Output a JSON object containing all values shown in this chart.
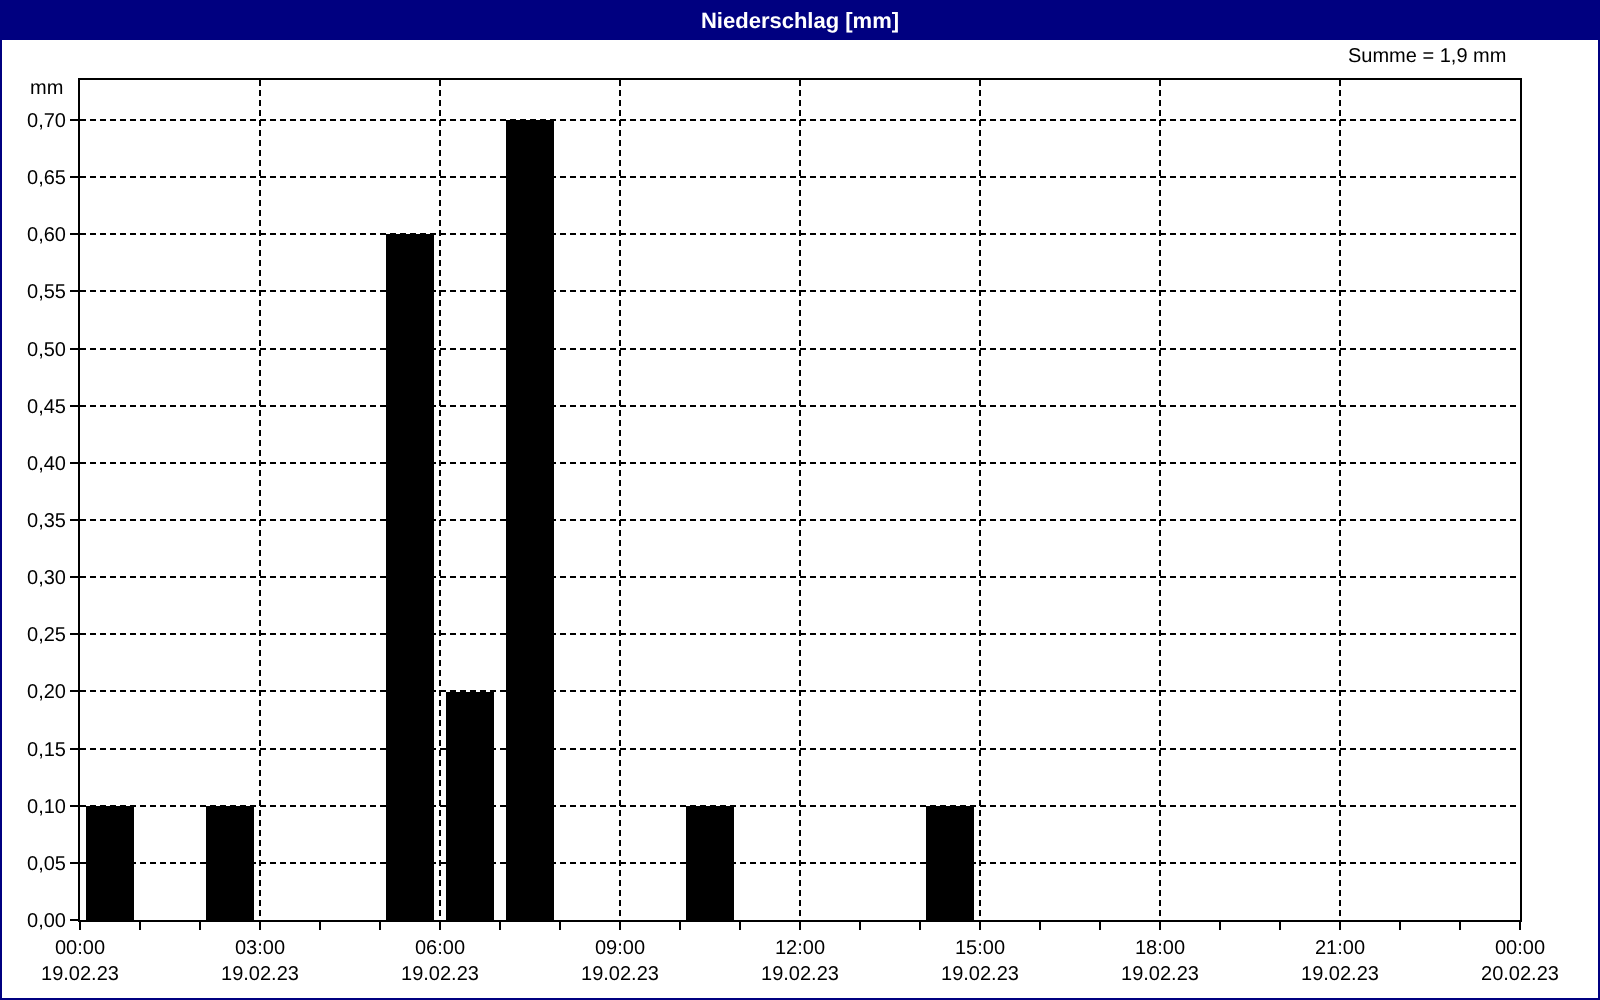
{
  "chart_data": {
    "type": "bar",
    "title": "Niederschlag [mm]",
    "ylabel": "mm",
    "annotations": [
      "Summe = 1,9 mm"
    ],
    "x": [
      "--02-19T00:30",
      "--02-19T02:30",
      "--02-19T05:30",
      "--02-19T06:30",
      "--02-19T07:30",
      "--02-19T10:30",
      "--02-19T14:30"
    ],
    "values": [
      0.1,
      0.1,
      0.6,
      0.2,
      0.7,
      0.1,
      0.1
    ],
    "color": "#000000",
    "xlim": [
      "--02-19T00:00",
      "--02-20T00:00"
    ],
    "xticks": [
      {
        "value": "--02-19T00:00",
        "label": "00:00\n19.02.23"
      },
      {
        "value": "--02-19T01:00",
        "label": null
      },
      {
        "value": "--02-19T02:00",
        "label": null
      },
      {
        "value": "--02-19T03:00",
        "label": "03:00\n19.02.23"
      },
      {
        "value": "--02-19T04:00",
        "label": null
      },
      {
        "value": "--02-19T05:00",
        "label": null
      },
      {
        "value": "--02-19T06:00",
        "label": "06:00\n19.02.23"
      },
      {
        "value": "--02-19T07:00",
        "label": null
      },
      {
        "value": "--02-19T08:00",
        "label": null
      },
      {
        "value": "--02-19T09:00",
        "label": "09:00\n19.02.23"
      },
      {
        "value": "--02-19T10:00",
        "label": null
      },
      {
        "value": "--02-19T11:00",
        "label": null
      },
      {
        "value": "--02-19T12:00",
        "label": "12:00\n19.02.23"
      },
      {
        "value": "--02-19T13:00",
        "label": null
      },
      {
        "value": "--02-19T14:00",
        "label": null
      },
      {
        "value": "--02-19T15:00",
        "label": "15:00\n19.02.23"
      },
      {
        "value": "--02-19T16:00",
        "label": null
      },
      {
        "value": "--02-19T17:00",
        "label": null
      },
      {
        "value": "--02-19T18:00",
        "label": "18:00\n19.02.23"
      },
      {
        "value": "--02-19T19:00",
        "label": null
      },
      {
        "value": "--02-19T20:00",
        "label": null
      },
      {
        "value": "--02-19T21:00",
        "label": "21:00\n19.02.23"
      },
      {
        "value": "--02-19T22:00",
        "label": null
      },
      {
        "value": "--02-19T23:00",
        "label": null
      },
      {
        "value": "--02-20T00:00",
        "label": "00:00\n20.02.23"
      }
    ],
    "ylim": [
      0,
      0.735
    ],
    "yticks": [
      {
        "value": 0,
        "label": "0,00"
      },
      {
        "value": 0.05,
        "label": "0,05"
      },
      {
        "value": 0.1,
        "label": "0,10"
      },
      {
        "value": 0.15,
        "label": "0,15"
      },
      {
        "value": 0.2,
        "label": "0,20"
      },
      {
        "value": 0.25,
        "label": "0,25"
      },
      {
        "value": 0.3,
        "label": "0,30"
      },
      {
        "value": 0.35,
        "label": "0,35"
      },
      {
        "value": 0.4,
        "label": "0,40"
      },
      {
        "value": 0.45,
        "label": "0,45"
      },
      {
        "value": 0.5,
        "label": "0,50"
      },
      {
        "value": 0.55,
        "label": "0,55"
      },
      {
        "value": 0.6,
        "label": "0,60"
      },
      {
        "value": 0.65,
        "label": "0,65"
      },
      {
        "value": 0.7,
        "label": "0,70"
      }
    ],
    "grid": true
  }
}
